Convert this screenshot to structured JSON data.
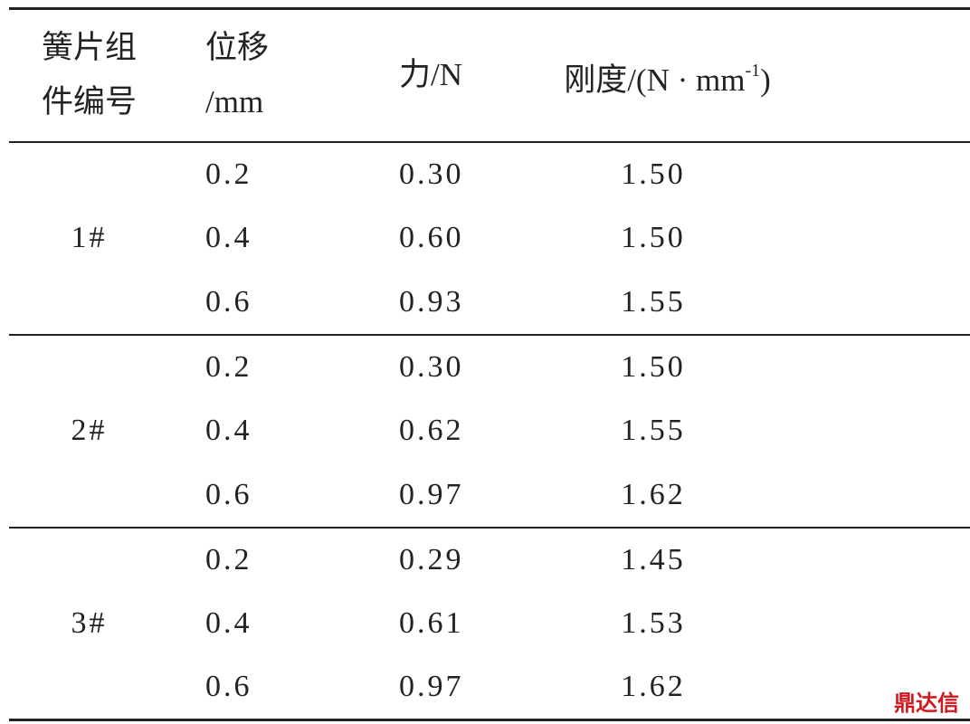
{
  "table": {
    "header": [
      [
        "簧片组",
        "件编号"
      ],
      [
        "位移",
        "/mm"
      ],
      [
        "力/N"
      ],
      [
        "刚度/(N · mm",
        "-1",
        ")"
      ]
    ],
    "groups": [
      {
        "label": "1#",
        "rows": [
          [
            "0.2",
            "0.30",
            "1.50"
          ],
          [
            "0.4",
            "0.60",
            "1.50"
          ],
          [
            "0.6",
            "0.93",
            "1.55"
          ]
        ]
      },
      {
        "label": "2#",
        "rows": [
          [
            "0.2",
            "0.30",
            "1.50"
          ],
          [
            "0.4",
            "0.62",
            "1.55"
          ],
          [
            "0.6",
            "0.97",
            "1.62"
          ]
        ]
      },
      {
        "label": "3#",
        "rows": [
          [
            "0.2",
            "0.29",
            "1.45"
          ],
          [
            "0.4",
            "0.61",
            "1.53"
          ],
          [
            "0.6",
            "0.97",
            "1.62"
          ]
        ]
      }
    ]
  },
  "watermark": "鼎达信"
}
